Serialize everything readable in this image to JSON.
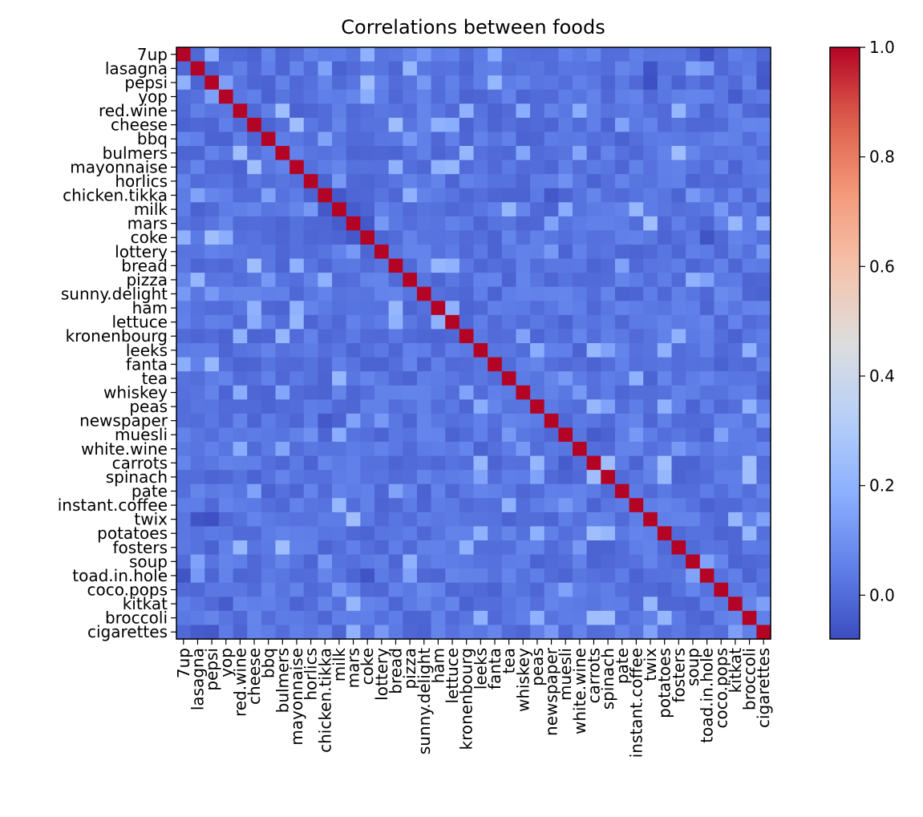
{
  "chart_data": {
    "type": "heatmap",
    "title": "Correlations between foods",
    "labels": [
      "7up",
      "lasagna",
      "pepsi",
      "yop",
      "red.wine",
      "cheese",
      "bbq",
      "bulmers",
      "mayonnaise",
      "horlics",
      "chicken.tikka",
      "milk",
      "mars",
      "coke",
      "lottery",
      "bread",
      "pizza",
      "sunny.delight",
      "ham",
      "lettuce",
      "kronenbourg",
      "leeks",
      "fanta",
      "tea",
      "whiskey",
      "peas",
      "newspaper",
      "muesli",
      "white.wine",
      "carrots",
      "spinach",
      "pate",
      "instant.coffee",
      "twix",
      "potatoes",
      "fosters",
      "soup",
      "toad.in.hole",
      "coco.pops",
      "kitkat",
      "broccoli",
      "cigarettes"
    ],
    "value_range": [
      -0.08,
      1.0
    ],
    "colormap": "coolwarm",
    "colorbar_ticks": [
      "0.0",
      "0.2",
      "0.4",
      "0.6",
      "0.8",
      "1.0"
    ],
    "diagonal_value": 1.0,
    "background_value": 0.02,
    "notable_pairs": [
      [
        "7up",
        "pepsi",
        0.2
      ],
      [
        "7up",
        "coke",
        0.2
      ],
      [
        "7up",
        "sunny.delight",
        0.12
      ],
      [
        "7up",
        "fanta",
        0.18
      ],
      [
        "pepsi",
        "coke",
        0.25
      ],
      [
        "pepsi",
        "fanta",
        0.22
      ],
      [
        "pepsi",
        "sunny.delight",
        0.12
      ],
      [
        "yop",
        "coke",
        0.18
      ],
      [
        "yop",
        "pepsi",
        0.14
      ],
      [
        "lasagna",
        "pizza",
        0.22
      ],
      [
        "lasagna",
        "chicken.tikka",
        0.15
      ],
      [
        "lasagna",
        "soup",
        0.15
      ],
      [
        "lasagna",
        "toad.in.hole",
        0.12
      ],
      [
        "red.wine",
        "bulmers",
        0.25
      ],
      [
        "red.wine",
        "kronenbourg",
        0.2
      ],
      [
        "red.wine",
        "whiskey",
        0.18
      ],
      [
        "red.wine",
        "white.wine",
        0.18
      ],
      [
        "red.wine",
        "fosters",
        0.22
      ],
      [
        "bulmers",
        "kronenbourg",
        0.22
      ],
      [
        "bulmers",
        "fosters",
        0.25
      ],
      [
        "bulmers",
        "white.wine",
        0.16
      ],
      [
        "bulmers",
        "whiskey",
        0.16
      ],
      [
        "kronenbourg",
        "fosters",
        0.2
      ],
      [
        "kronenbourg",
        "whiskey",
        0.15
      ],
      [
        "whiskey",
        "white.wine",
        0.12
      ],
      [
        "white.wine",
        "fosters",
        0.12
      ],
      [
        "cheese",
        "mayonnaise",
        0.25
      ],
      [
        "cheese",
        "bread",
        0.25
      ],
      [
        "cheese",
        "ham",
        0.2
      ],
      [
        "cheese",
        "lettuce",
        0.18
      ],
      [
        "cheese",
        "pate",
        0.15
      ],
      [
        "mayonnaise",
        "bread",
        0.2
      ],
      [
        "mayonnaise",
        "ham",
        0.2
      ],
      [
        "mayonnaise",
        "lettuce",
        0.22
      ],
      [
        "bread",
        "ham",
        0.22
      ],
      [
        "bread",
        "lettuce",
        0.2
      ],
      [
        "bread",
        "pate",
        0.15
      ],
      [
        "ham",
        "lettuce",
        0.2
      ],
      [
        "bbq",
        "chicken.tikka",
        0.15
      ],
      [
        "bbq",
        "pizza",
        0.12
      ],
      [
        "chicken.tikka",
        "pizza",
        0.2
      ],
      [
        "chicken.tikka",
        "soup",
        0.12
      ],
      [
        "pizza",
        "soup",
        0.2
      ],
      [
        "pizza",
        "toad.in.hole",
        0.15
      ],
      [
        "soup",
        "toad.in.hole",
        0.15
      ],
      [
        "milk",
        "tea",
        0.22
      ],
      [
        "milk",
        "muesli",
        0.18
      ],
      [
        "milk",
        "instant.coffee",
        0.22
      ],
      [
        "milk",
        "coco.pops",
        0.12
      ],
      [
        "tea",
        "instant.coffee",
        0.2
      ],
      [
        "tea",
        "muesli",
        0.12
      ],
      [
        "muesli",
        "coco.pops",
        0.15
      ],
      [
        "muesli",
        "instant.coffee",
        0.12
      ],
      [
        "mars",
        "twix",
        0.25
      ],
      [
        "mars",
        "kitkat",
        0.22
      ],
      [
        "mars",
        "cigarettes",
        0.2
      ],
      [
        "mars",
        "newspaper",
        0.15
      ],
      [
        "mars",
        "lottery",
        0.12
      ],
      [
        "twix",
        "kitkat",
        0.22
      ],
      [
        "twix",
        "cigarettes",
        0.15
      ],
      [
        "kitkat",
        "cigarettes",
        0.14
      ],
      [
        "lottery",
        "newspaper",
        0.12
      ],
      [
        "lottery",
        "cigarettes",
        0.12
      ],
      [
        "newspaper",
        "cigarettes",
        0.12
      ],
      [
        "leeks",
        "carrots",
        0.22
      ],
      [
        "leeks",
        "peas",
        0.18
      ],
      [
        "leeks",
        "potatoes",
        0.2
      ],
      [
        "leeks",
        "broccoli",
        0.2
      ],
      [
        "leeks",
        "spinach",
        0.15
      ],
      [
        "peas",
        "carrots",
        0.22
      ],
      [
        "peas",
        "potatoes",
        0.2
      ],
      [
        "peas",
        "broccoli",
        0.2
      ],
      [
        "peas",
        "spinach",
        0.15
      ],
      [
        "carrots",
        "spinach",
        0.25
      ],
      [
        "carrots",
        "potatoes",
        0.25
      ],
      [
        "carrots",
        "broccoli",
        0.25
      ],
      [
        "spinach",
        "potatoes",
        0.22
      ],
      [
        "spinach",
        "broccoli",
        0.25
      ],
      [
        "potatoes",
        "broccoli",
        0.22
      ],
      [
        "yop",
        "red.wine",
        0.03
      ],
      [
        "horlics",
        "milk",
        0.12
      ],
      [
        "horlics",
        "muesli",
        0.1
      ],
      [
        "sunny.delight",
        "coco.pops",
        0.08
      ],
      [
        "lasagna",
        "twix",
        -0.06
      ],
      [
        "7up",
        "toad.in.hole",
        -0.06
      ],
      [
        "pepsi",
        "twix",
        -0.07
      ],
      [
        "coke",
        "toad.in.hole",
        -0.06
      ],
      [
        "chicken.tikka",
        "milk",
        -0.05
      ],
      [
        "chicken.tikka",
        "newspaper",
        -0.05
      ],
      [
        "mars",
        "coke",
        -0.05
      ],
      [
        "pepsi",
        "cigarettes",
        -0.05
      ],
      [
        "lasagna",
        "cigarettes",
        -0.04
      ],
      [
        "yop",
        "kitkat",
        -0.04
      ],
      [
        "milk",
        "mars",
        -0.04
      ],
      [
        "carrots",
        "muesli",
        -0.04
      ]
    ]
  }
}
